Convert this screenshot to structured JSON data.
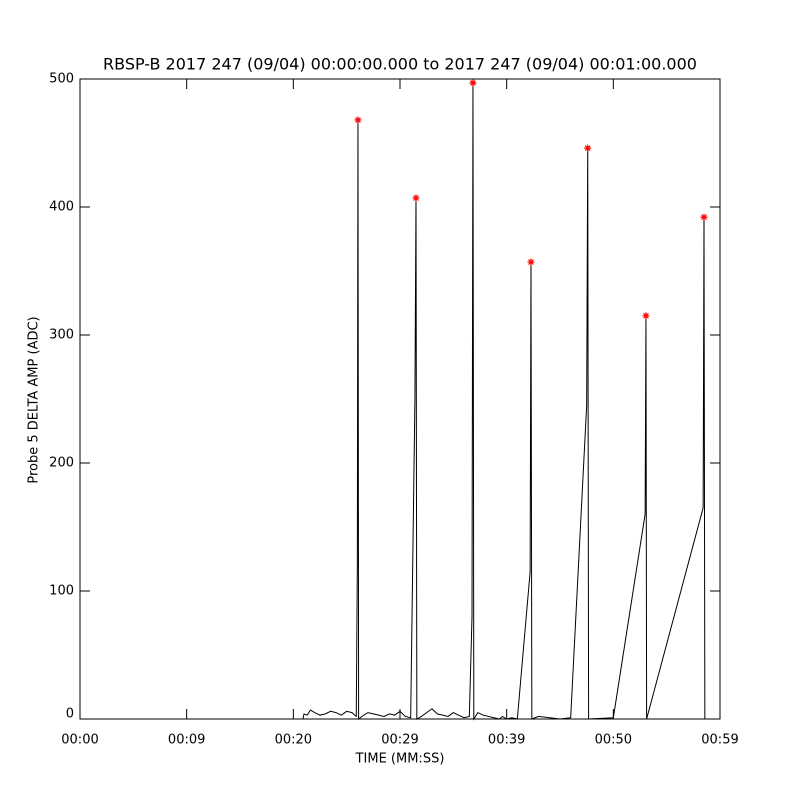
{
  "chart_data": {
    "type": "line",
    "title": "RBSP-B 2017 247 (09/04) 00:00:00.000 to 2017 247 (09/04) 00:01:00.000",
    "xlabel": "TIME (MM:SS)",
    "ylabel": "Probe 5 DELTA AMP (ADC)",
    "xlim": [
      0,
      60
    ],
    "ylim": [
      0,
      500
    ],
    "xticks": [
      {
        "value": 0,
        "label": "00:00"
      },
      {
        "value": 10,
        "label": "00:09"
      },
      {
        "value": 20,
        "label": "00:20"
      },
      {
        "value": 30,
        "label": "00:29"
      },
      {
        "value": 40,
        "label": "00:39"
      },
      {
        "value": 50,
        "label": "00:50"
      },
      {
        "value": 60,
        "label": "00:59"
      }
    ],
    "yticks": [
      0,
      100,
      200,
      300,
      400,
      500
    ],
    "series": [
      {
        "color": "#000000",
        "x": [
          20.9,
          21.0,
          21.3,
          21.6,
          22,
          22.5,
          23,
          23.5,
          24,
          24.5,
          25,
          25.5,
          25.9,
          26.0,
          26.06,
          26.12,
          26.6,
          27,
          27.5,
          28,
          28.5,
          29,
          29.5,
          30,
          30.5,
          31.0,
          31.4,
          31.5,
          31.58,
          32,
          32.5,
          33,
          33.5,
          34,
          34.5,
          35,
          35.5,
          36,
          36.5,
          36.75,
          36.84,
          36.92,
          37.3,
          37.8,
          38.3,
          38.8,
          39.3,
          39.6,
          40,
          40.5,
          41,
          42.2,
          42.28,
          42.36,
          43,
          45,
          46,
          47.5,
          47.6,
          47.68,
          50,
          52.98,
          53.06,
          53.12,
          58.42,
          58.5,
          58.58,
          58.7
        ],
        "values": [
          0,
          4,
          3,
          7,
          5,
          3,
          4,
          6,
          5,
          3,
          6,
          5,
          2,
          120,
          468,
          0,
          3,
          5,
          4,
          3,
          2,
          4,
          3,
          6,
          2,
          1,
          250,
          407,
          0,
          2,
          5,
          8,
          4,
          3,
          2,
          5,
          3,
          1,
          2,
          80,
          497,
          0,
          5,
          3,
          2,
          1,
          0,
          2,
          0,
          1,
          0,
          115,
          357,
          0,
          2,
          0,
          1,
          245,
          446,
          0,
          1,
          160,
          315,
          0,
          165,
          392,
          0,
          0
        ]
      }
    ],
    "markers": {
      "color": "#ff0000",
      "x": [
        26.06,
        31.5,
        36.84,
        42.28,
        47.6,
        53.06,
        58.5
      ],
      "values": [
        468,
        407,
        497,
        357,
        446,
        315,
        392
      ]
    }
  }
}
